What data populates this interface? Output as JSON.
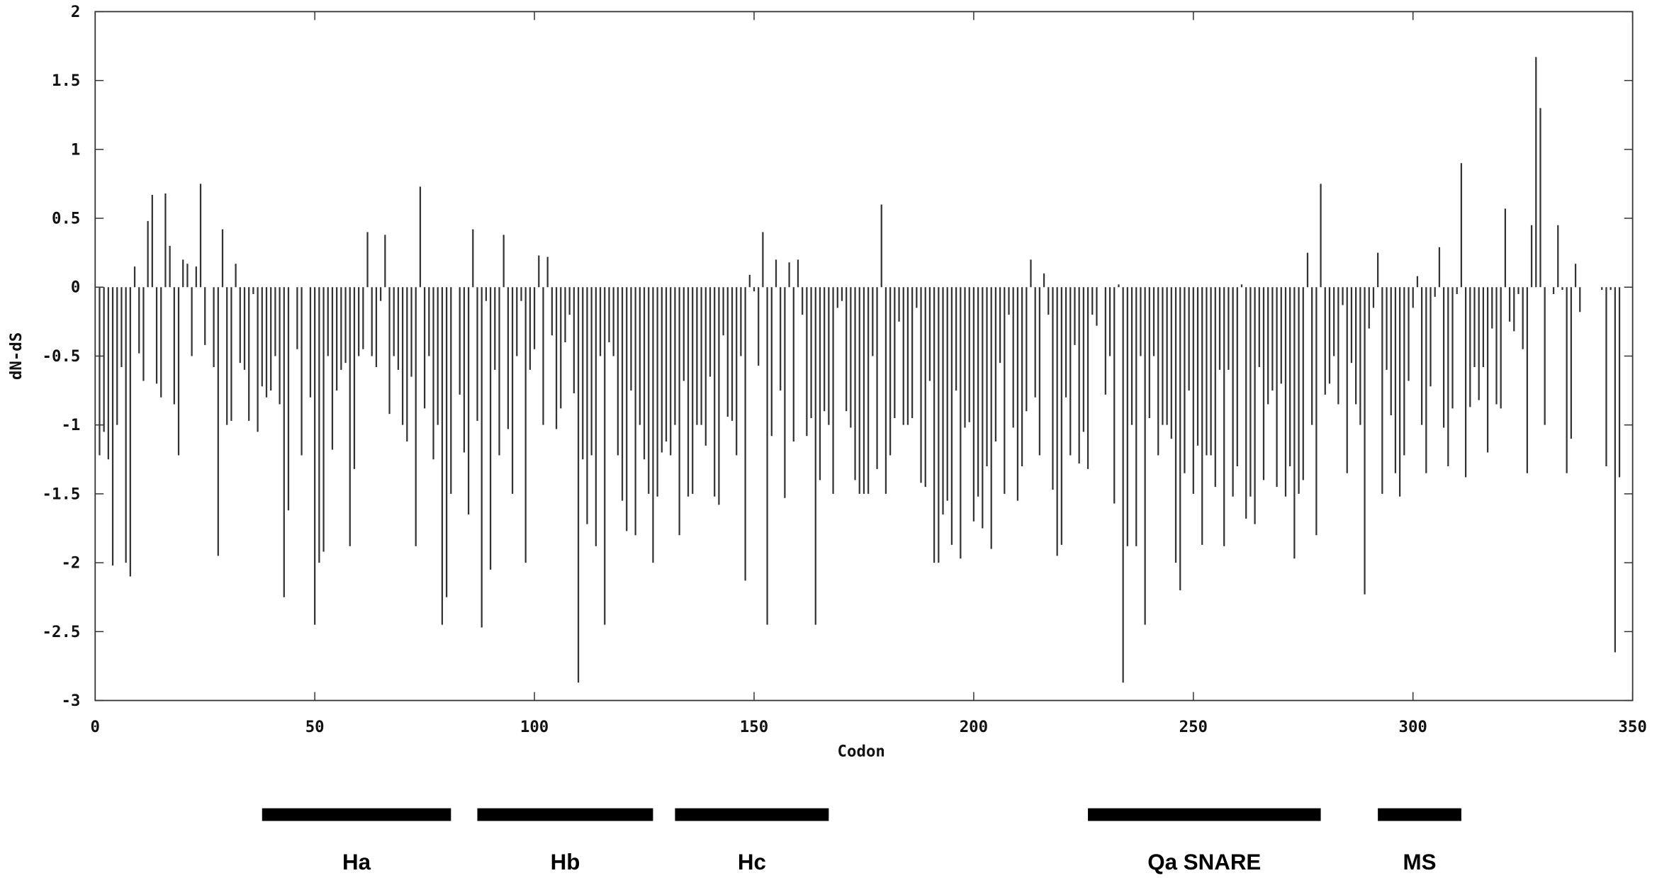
{
  "chart_data": {
    "type": "impulse",
    "xlabel": "Codon",
    "ylabel": "dN-dS",
    "xlim": [
      0,
      350
    ],
    "xticks": [
      0,
      50,
      100,
      150,
      200,
      250,
      300,
      350
    ],
    "ylim": [
      -3,
      2
    ],
    "yticks": [
      -3,
      -2.5,
      -2,
      -1.5,
      -1,
      -0.5,
      0,
      0.5,
      1,
      1.5,
      2
    ],
    "color": "#333333",
    "x": [
      1,
      2,
      3,
      4,
      5,
      6,
      7,
      8,
      9,
      10,
      11,
      12,
      13,
      14,
      15,
      16,
      17,
      18,
      19,
      20,
      21,
      22,
      23,
      24,
      25,
      26,
      27,
      28,
      29,
      30,
      31,
      32,
      33,
      34,
      35,
      36,
      37,
      38,
      39,
      40,
      41,
      42,
      43,
      44,
      45,
      46,
      47,
      48,
      49,
      50,
      51,
      52,
      53,
      54,
      55,
      56,
      57,
      58,
      59,
      60,
      61,
      62,
      63,
      64,
      65,
      66,
      67,
      68,
      69,
      70,
      71,
      72,
      73,
      74,
      75,
      76,
      77,
      78,
      79,
      80,
      81,
      82,
      83,
      84,
      85,
      86,
      87,
      88,
      89,
      90,
      91,
      92,
      93,
      94,
      95,
      96,
      97,
      98,
      99,
      100,
      101,
      102,
      103,
      104,
      105,
      106,
      107,
      108,
      109,
      110,
      111,
      112,
      113,
      114,
      115,
      116,
      117,
      118,
      119,
      120,
      121,
      122,
      123,
      124,
      125,
      126,
      127,
      128,
      129,
      130,
      131,
      132,
      133,
      134,
      135,
      136,
      137,
      138,
      139,
      140,
      141,
      142,
      143,
      144,
      145,
      146,
      147,
      148,
      149,
      150,
      151,
      152,
      153,
      154,
      155,
      156,
      157,
      158,
      159,
      160,
      161,
      162,
      163,
      164,
      165,
      166,
      167,
      168,
      169,
      170,
      171,
      172,
      173,
      174,
      175,
      176,
      177,
      178,
      179,
      180,
      181,
      182,
      183,
      184,
      185,
      186,
      187,
      188,
      189,
      190,
      191,
      192,
      193,
      194,
      195,
      196,
      197,
      198,
      199,
      200,
      201,
      202,
      203,
      204,
      205,
      206,
      207,
      208,
      209,
      210,
      211,
      212,
      213,
      214,
      215,
      216,
      217,
      218,
      219,
      220,
      221,
      222,
      223,
      224,
      225,
      226,
      227,
      228,
      229,
      230,
      231,
      232,
      233,
      234,
      235,
      236,
      237,
      238,
      239,
      240,
      241,
      242,
      243,
      244,
      245,
      246,
      247,
      248,
      249,
      250,
      251,
      252,
      253,
      254,
      255,
      256,
      257,
      258,
      259,
      260,
      261,
      262,
      263,
      264,
      265,
      266,
      267,
      268,
      269,
      270,
      271,
      272,
      273,
      274,
      275,
      276,
      277,
      278,
      279,
      280,
      281,
      282,
      283,
      284,
      285,
      286,
      287,
      288,
      289,
      290,
      291,
      292,
      293,
      294,
      295,
      296,
      297,
      298,
      299,
      300,
      301,
      302,
      303,
      304,
      305,
      306,
      307,
      308,
      309,
      310,
      311,
      312,
      313,
      314,
      315,
      316,
      317,
      318,
      319,
      320,
      321,
      322,
      323,
      324,
      325,
      326,
      327,
      328,
      329,
      330,
      331,
      332,
      333,
      334,
      335,
      336,
      337,
      338,
      339,
      340,
      341,
      342,
      343,
      344,
      345,
      346,
      347
    ],
    "values": [
      -1.22,
      -1.05,
      -1.25,
      -2.02,
      -1.0,
      -0.58,
      -2.0,
      -2.1,
      0.15,
      -0.48,
      -0.68,
      0.48,
      0.67,
      -0.7,
      -0.8,
      0.68,
      0.3,
      -0.85,
      -1.22,
      0.2,
      0.17,
      -0.5,
      0.15,
      0.75,
      -0.42,
      0,
      -0.58,
      -1.95,
      0.42,
      -1.0,
      -0.97,
      0.17,
      -0.55,
      -0.6,
      -0.97,
      -0.05,
      -1.05,
      -0.72,
      -0.8,
      -0.75,
      -0.5,
      -0.85,
      -2.25,
      -1.62,
      0,
      -0.45,
      -1.22,
      0,
      -0.8,
      -2.45,
      -2.0,
      -1.92,
      -0.5,
      -1.18,
      -0.75,
      -0.6,
      -0.55,
      -1.88,
      -1.32,
      -0.5,
      -0.45,
      0.4,
      -0.5,
      -0.58,
      -0.1,
      0.38,
      -0.92,
      -0.5,
      -0.6,
      -1.0,
      -1.12,
      -0.65,
      -1.88,
      0.73,
      -0.88,
      -0.5,
      -1.25,
      -1.0,
      -2.45,
      -2.25,
      -1.5,
      0,
      -0.78,
      -1.2,
      -1.65,
      0.42,
      -0.97,
      -2.47,
      -0.1,
      -2.05,
      -0.6,
      -1.22,
      0.38,
      -1.03,
      -1.5,
      -0.5,
      -0.1,
      -2.0,
      -0.6,
      -0.45,
      0.23,
      -1.0,
      0.22,
      -0.35,
      -1.03,
      -0.88,
      -0.4,
      -0.2,
      -0.77,
      -2.87,
      -1.25,
      -1.72,
      -1.22,
      -1.88,
      -0.5,
      -2.45,
      -0.4,
      -0.5,
      -1.22,
      -1.55,
      -1.77,
      -0.75,
      -1.8,
      -1.0,
      -1.25,
      -1.5,
      -2.0,
      -1.52,
      -1.2,
      -1.12,
      -1.22,
      -1.0,
      -1.8,
      -0.68,
      -1.52,
      -1.5,
      -1.0,
      -1.0,
      -1.15,
      -0.65,
      -1.52,
      -1.58,
      -0.35,
      -0.94,
      -0.97,
      -1.22,
      -0.5,
      -2.13,
      0.09,
      -0.03,
      -0.57,
      0.4,
      -2.45,
      -1.08,
      0.2,
      -0.75,
      -1.53,
      0.18,
      -1.12,
      0.2,
      -0.2,
      -1.08,
      -0.95,
      -2.45,
      -1.4,
      -0.9,
      -1.0,
      -1.5,
      -0.15,
      -0.1,
      -0.9,
      -1.02,
      -1.4,
      -1.5,
      -1.5,
      -1.5,
      -0.5,
      -1.32,
      0.6,
      -1.5,
      -1.22,
      -0.95,
      -0.25,
      -1.0,
      -1.0,
      -0.95,
      -0.15,
      -1.42,
      -1.45,
      -0.68,
      -2.0,
      -2.0,
      -1.65,
      -1.55,
      -1.87,
      -0.75,
      -1.97,
      -1.02,
      -0.98,
      -1.7,
      -1.52,
      -1.75,
      -1.3,
      -1.9,
      -1.12,
      -0.55,
      -1.5,
      -0.2,
      -1.02,
      -1.55,
      -1.3,
      -0.9,
      0.2,
      -0.8,
      -1.22,
      0.1,
      -0.2,
      -1.47,
      -1.95,
      -1.87,
      -0.8,
      -1.22,
      -0.42,
      -1.28,
      -1.05,
      -1.32,
      -0.2,
      -0.28,
      0,
      -0.78,
      -0.5,
      -1.57,
      0.02,
      -2.87,
      -1.88,
      -1.0,
      -1.88,
      -0.5,
      -2.45,
      -0.95,
      -0.5,
      -1.22,
      -1.0,
      -1.0,
      -1.1,
      -2.0,
      -2.2,
      -1.35,
      -0.75,
      -1.5,
      -1.15,
      -1.87,
      -1.22,
      -1.22,
      -1.45,
      -0.6,
      -1.88,
      -0.6,
      -1.52,
      -1.3,
      0.02,
      -1.68,
      -1.52,
      -1.72,
      -0.58,
      -1.4,
      -0.85,
      -0.75,
      -1.45,
      -0.7,
      -1.52,
      -1.3,
      -1.97,
      -1.5,
      -1.4,
      0.25,
      -1.0,
      -1.8,
      0.75,
      -0.78,
      -0.7,
      -0.5,
      -0.85,
      -0.13,
      -1.35,
      -0.55,
      -0.85,
      -1.0,
      -2.23,
      -0.3,
      -0.15,
      0.25,
      -1.5,
      -0.6,
      -0.93,
      -1.35,
      -1.52,
      -1.22,
      -0.68,
      -0.15,
      0.08,
      -1.0,
      -1.35,
      -0.72,
      -0.07,
      0.29,
      -1.02,
      -1.3,
      -0.88,
      -0.05,
      0.9,
      -1.38,
      -0.87,
      -0.58,
      -0.82,
      -0.58,
      -1.2,
      -0.3,
      -0.85,
      -0.88,
      0.57,
      -0.25,
      -0.32,
      -0.05,
      -0.45,
      -1.35,
      0.45,
      1.67,
      1.3,
      -1.0,
      0,
      -0.05,
      0.45,
      -0.02,
      -1.35,
      -1.1,
      0.17,
      -0.18,
      0,
      0,
      0,
      0,
      -0.02,
      -1.3,
      -0.02,
      -2.65,
      -1.38
    ],
    "domains": [
      {
        "label": "Ha",
        "start": 38,
        "end": 81
      },
      {
        "label": "Hb",
        "start": 87,
        "end": 127
      },
      {
        "label": "Hc",
        "start": 132,
        "end": 167
      },
      {
        "label": "Qa SNARE",
        "start": 226,
        "end": 279
      },
      {
        "label": "MS",
        "start": 292,
        "end": 311
      }
    ]
  }
}
